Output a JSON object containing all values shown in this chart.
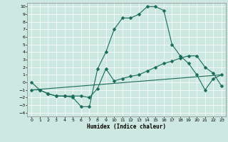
{
  "xlabel": "Humidex (Indice chaleur)",
  "xlim": [
    -0.5,
    23.5
  ],
  "ylim": [
    -4.5,
    10.5
  ],
  "xticks": [
    0,
    1,
    2,
    3,
    4,
    5,
    6,
    7,
    8,
    9,
    10,
    11,
    12,
    13,
    14,
    15,
    16,
    17,
    18,
    19,
    20,
    21,
    22,
    23
  ],
  "yticks": [
    -4,
    -3,
    -2,
    -1,
    0,
    1,
    2,
    3,
    4,
    5,
    6,
    7,
    8,
    9,
    10
  ],
  "bg_color": "#cce8e0",
  "line_color": "#1a6b5a",
  "grid_color": "#ffffff",
  "series1_x": [
    0,
    1,
    2,
    3,
    4,
    5,
    6,
    7,
    8,
    9,
    10,
    11,
    12,
    13,
    14,
    15,
    16,
    17,
    18,
    19,
    20,
    21,
    22,
    23
  ],
  "series1_y": [
    0,
    -1,
    -1.5,
    -1.8,
    -1.8,
    -2,
    -3.2,
    -3.2,
    1.8,
    4,
    7,
    8.5,
    8.5,
    9,
    10,
    10,
    9.5,
    5,
    3.5,
    2.5,
    1,
    -1,
    0.5,
    1
  ],
  "series2_x": [
    0,
    1,
    2,
    3,
    4,
    5,
    6,
    7,
    8,
    9,
    10,
    11,
    12,
    13,
    14,
    15,
    16,
    17,
    18,
    19,
    20,
    21,
    22,
    23
  ],
  "series2_y": [
    -1,
    -1,
    -1.5,
    -1.8,
    -1.8,
    -1.8,
    -1.8,
    -2,
    -0.8,
    1.8,
    0.2,
    0.5,
    0.8,
    1,
    1.5,
    2,
    2.5,
    2.8,
    3.2,
    3.5,
    3.5,
    2,
    1.2,
    -0.5
  ],
  "series3_x": [
    0,
    23
  ],
  "series3_y": [
    -1,
    1
  ],
  "markersize": 2.5
}
